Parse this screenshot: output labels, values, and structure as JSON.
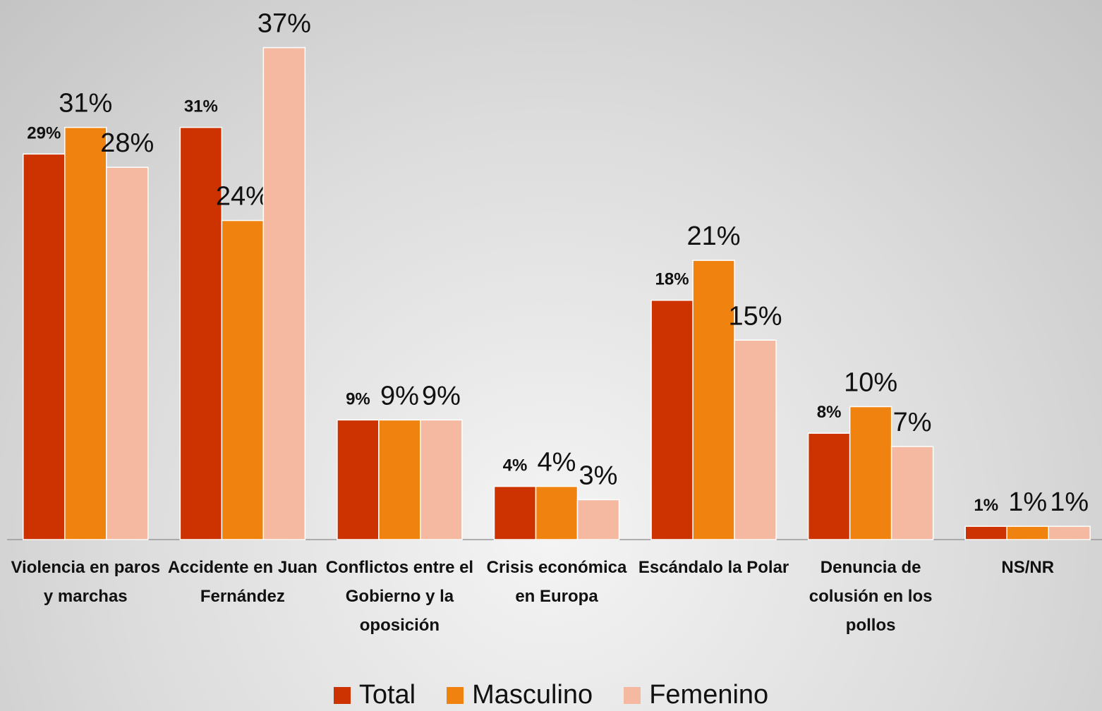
{
  "chart_data": {
    "type": "bar",
    "categories": [
      "Violencia en paros y marchas",
      "Accidente en Juan Fernández",
      "Conflictos entre el Gobierno y la oposición",
      "Crisis económica en Europa",
      "Escándalo la Polar",
      "Denuncia de colusión en los pollos",
      "NS/NR"
    ],
    "series": [
      {
        "name": "Total",
        "color": "#cc3300",
        "values": [
          29,
          31,
          9,
          4,
          18,
          8,
          1
        ],
        "value_labels": [
          "29%",
          "31%",
          "9%",
          "4%",
          "18%",
          "8%",
          "1%"
        ]
      },
      {
        "name": "Masculino",
        "color": "#f0820f",
        "values": [
          31,
          24,
          9,
          4,
          21,
          10,
          1
        ],
        "value_labels": [
          "31%",
          "24%",
          "9%",
          "4%",
          "21%",
          "10%",
          "1%"
        ]
      },
      {
        "name": "Femenino",
        "color": "#f5b8a0",
        "values": [
          28,
          37,
          9,
          3,
          15,
          7,
          1
        ],
        "value_labels": [
          "28%",
          "37%",
          "9%",
          "3%",
          "15%",
          "7%",
          "1%"
        ]
      }
    ],
    "ylim": [
      0,
      40
    ],
    "legend": "bottom"
  }
}
